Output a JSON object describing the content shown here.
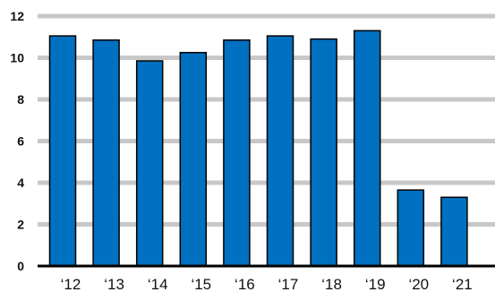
{
  "chart_data": {
    "type": "bar",
    "categories": [
      "‘12",
      "‘13",
      "‘14",
      "‘15",
      "‘16",
      "‘17",
      "‘18",
      "‘19",
      "‘20",
      "‘21"
    ],
    "values": [
      11.05,
      10.85,
      9.85,
      10.25,
      10.85,
      11.05,
      10.9,
      11.3,
      3.65,
      3.3
    ],
    "ylim": [
      0,
      12
    ],
    "yticks": [
      0,
      2,
      4,
      6,
      8,
      10,
      12
    ],
    "grid": true,
    "colors": {
      "bar": "#0070c0",
      "grid": "#c8c8c8",
      "axis": "#000000"
    }
  }
}
